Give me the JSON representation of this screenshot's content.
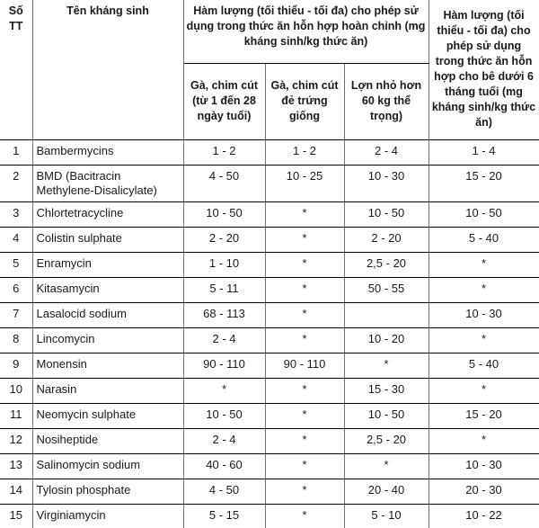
{
  "table": {
    "headers": {
      "stt": "Số TT",
      "antibiotic_name": "Tên kháng sinh",
      "group_complete_feed": "Hàm lượng (tối thiểu - tối đa) cho phép sử dụng trong thức ăn hỗn hợp hoàn chỉnh (mg kháng sinh/kg thức ăn)",
      "sub_chicken_1_28": "Gà, chim cút (từ 1 đến 28 ngày tuổi)",
      "sub_chicken_breeding": "Gà, chim cút đẻ trứng giống",
      "sub_pig": "Lợn nhỏ hơn 60 kg thể trọng)",
      "calf_feed": "Hàm lượng (tối thiểu - tối đa) cho phép sử dụng trong thức ăn hỗn hợp cho bê dưới 6 tháng tuổi (mg kháng sinh/kg thức ăn)"
    },
    "rows": [
      {
        "stt": "1",
        "name": "Bambermycins",
        "chicken_1_28": "1 - 2",
        "chicken_breeding": "1 - 2",
        "pig": "2 - 4",
        "calf": "1 - 4"
      },
      {
        "stt": "2",
        "name": "BMD (Bacitracin Methylene-Disalicylate)",
        "chicken_1_28": "4 - 50",
        "chicken_breeding": "10 - 25",
        "pig": "10 - 30",
        "calf": "15 - 20"
      },
      {
        "stt": "3",
        "name": "Chlortetracycline",
        "chicken_1_28": "10 - 50",
        "chicken_breeding": "*",
        "pig": "10 - 50",
        "calf": "10 - 50"
      },
      {
        "stt": "4",
        "name": "Colistin sulphate",
        "chicken_1_28": "2 - 20",
        "chicken_breeding": "*",
        "pig": "2 - 20",
        "calf": "5 - 40"
      },
      {
        "stt": "5",
        "name": "Enramycin",
        "chicken_1_28": "1 - 10",
        "chicken_breeding": "*",
        "pig": "2,5 - 20",
        "calf": "*"
      },
      {
        "stt": "6",
        "name": "Kitasamycin",
        "chicken_1_28": "5 - 11",
        "chicken_breeding": "*",
        "pig": "50 - 55",
        "calf": "*"
      },
      {
        "stt": "7",
        "name": "Lasalocid sodium",
        "chicken_1_28": "68 - 113",
        "chicken_breeding": "*",
        "pig": "",
        "calf": "10 - 30"
      },
      {
        "stt": "8",
        "name": "Lincomycin",
        "chicken_1_28": "2 - 4",
        "chicken_breeding": "*",
        "pig": "10 - 20",
        "calf": "*"
      },
      {
        "stt": "9",
        "name": "Monensin",
        "chicken_1_28": "90 - 110",
        "chicken_breeding": "90 - 110",
        "pig": "*",
        "calf": "5 - 40"
      },
      {
        "stt": "10",
        "name": "Narasin",
        "chicken_1_28": "*",
        "chicken_breeding": "*",
        "pig": "15 - 30",
        "calf": "*"
      },
      {
        "stt": "11",
        "name": "Neomycin sulphate",
        "chicken_1_28": "10 - 50",
        "chicken_breeding": "*",
        "pig": "10 - 50",
        "calf": "15 - 20"
      },
      {
        "stt": "12",
        "name": "Nosiheptide",
        "chicken_1_28": "2 - 4",
        "chicken_breeding": "*",
        "pig": "2,5 - 20",
        "calf": "*"
      },
      {
        "stt": "13",
        "name": "Salinomycin sodium",
        "chicken_1_28": "40 - 60",
        "chicken_breeding": "*",
        "pig": "*",
        "calf": "10 - 30"
      },
      {
        "stt": "14",
        "name": "Tylosin phosphate",
        "chicken_1_28": "4 - 50",
        "chicken_breeding": "*",
        "pig": "20 - 40",
        "calf": "20 - 30"
      },
      {
        "stt": "15",
        "name": "Virginiamycin",
        "chicken_1_28": "5 - 15",
        "chicken_breeding": "*",
        "pig": "5 - 10",
        "calf": "10 - 22"
      }
    ]
  }
}
